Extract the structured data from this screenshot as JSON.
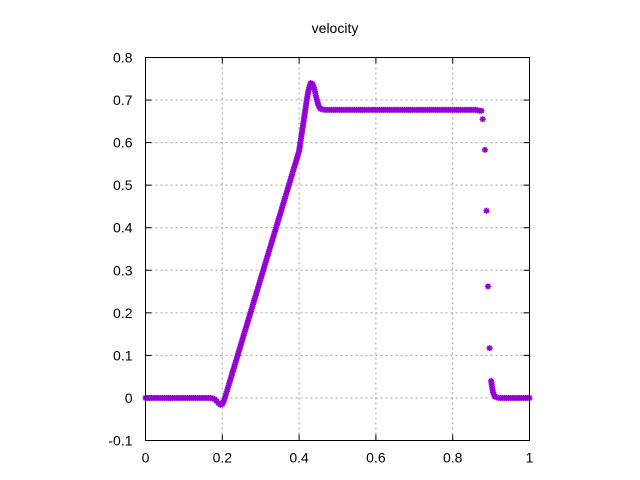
{
  "chart_data": {
    "type": "scatter",
    "title": "velocity",
    "xlabel": "",
    "ylabel": "",
    "xlim": [
      0,
      1
    ],
    "ylim": [
      -0.1,
      0.8
    ],
    "xticks": [
      "0",
      "0.2",
      "0.4",
      "0.6",
      "0.8",
      "1"
    ],
    "xtick_values": [
      0,
      0.2,
      0.4,
      0.6,
      0.8,
      1
    ],
    "yticks": [
      "-0.1",
      "0",
      "0.1",
      "0.2",
      "0.3",
      "0.4",
      "0.5",
      "0.6",
      "0.7",
      "0.8"
    ],
    "ytick_values": [
      -0.1,
      0,
      0.1,
      0.2,
      0.3,
      0.4,
      0.5,
      0.6,
      0.7,
      0.8
    ],
    "grid": true,
    "marker_color": "#9400d3",
    "series": [
      {
        "x": [
          0,
          0.01,
          0.02,
          0.03,
          0.04,
          0.05,
          0.06,
          0.07,
          0.08,
          0.09,
          0.1,
          0.11,
          0.12,
          0.13,
          0.14,
          0.15,
          0.16,
          0.17,
          0.18,
          0.185,
          0.19,
          0.195,
          0.2,
          0.205,
          0.21,
          0.215,
          0.22,
          0.23,
          0.24,
          0.25,
          0.26,
          0.27,
          0.28,
          0.29,
          0.3,
          0.31,
          0.32,
          0.33,
          0.34,
          0.35,
          0.36,
          0.37,
          0.38,
          0.39,
          0.4,
          0.41,
          0.42,
          0.425,
          0.43,
          0.435,
          0.44,
          0.445,
          0.45,
          0.455,
          0.46,
          0.47,
          0.48,
          0.5,
          0.52,
          0.54,
          0.56,
          0.58,
          0.6,
          0.62,
          0.64,
          0.66,
          0.68,
          0.7,
          0.72,
          0.74,
          0.76,
          0.78,
          0.8,
          0.82,
          0.84,
          0.85,
          0.86,
          0.865,
          0.87,
          0.875,
          0.878,
          0.884,
          0.888,
          0.892,
          0.896,
          0.9,
          0.905,
          0.91,
          0.92,
          0.93,
          0.94,
          0.95,
          0.96,
          0.97,
          0.98,
          0.99,
          1.0
        ],
        "y": [
          0,
          0,
          0,
          0,
          0,
          0,
          0,
          0,
          0,
          0,
          0,
          0,
          0,
          0,
          0,
          0,
          0,
          0,
          -0.003,
          -0.007,
          -0.012,
          -0.016,
          -0.015,
          -0.005,
          0.01,
          0.025,
          0.04,
          0.07,
          0.1,
          0.13,
          0.16,
          0.19,
          0.22,
          0.25,
          0.28,
          0.31,
          0.34,
          0.37,
          0.4,
          0.43,
          0.46,
          0.49,
          0.52,
          0.55,
          0.58,
          0.64,
          0.7,
          0.725,
          0.74,
          0.738,
          0.725,
          0.705,
          0.688,
          0.68,
          0.678,
          0.677,
          0.677,
          0.677,
          0.677,
          0.677,
          0.677,
          0.677,
          0.677,
          0.677,
          0.677,
          0.677,
          0.677,
          0.677,
          0.677,
          0.677,
          0.677,
          0.677,
          0.677,
          0.677,
          0.677,
          0.677,
          0.677,
          0.676,
          0.675,
          0.675,
          0.655,
          0.583,
          0.44,
          0.262,
          0.117,
          0.04,
          0.013,
          0.003,
          0,
          0,
          0,
          0,
          0,
          0,
          0,
          0,
          0
        ]
      }
    ]
  }
}
